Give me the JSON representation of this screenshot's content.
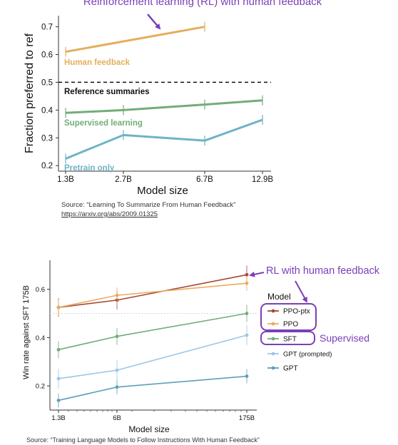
{
  "chart_data": [
    {
      "type": "line",
      "title": "Reinforcement learning (RL) with human feedback",
      "xlabel": "Model size",
      "ylabel": "Fraction preferred to ref",
      "x_ticks": [
        "1.3B",
        "2.7B",
        "6.7B",
        "12.9B"
      ],
      "y_ticks": [
        "0.2",
        "0.3",
        "0.4",
        "0.5",
        "0.6",
        "0.7"
      ],
      "ylim": [
        0.18,
        0.74
      ],
      "grid": false,
      "reference": {
        "label": "Reference summaries",
        "value": 0.5
      },
      "series": [
        {
          "name": "Human feedback",
          "color": "#e3b05c",
          "x": [
            "1.3B",
            "6.7B"
          ],
          "values": [
            0.61,
            0.7
          ]
        },
        {
          "name": "Supervised learning",
          "color": "#72ad78",
          "x": [
            "1.3B",
            "2.7B",
            "6.7B",
            "12.9B"
          ],
          "values": [
            0.39,
            0.4,
            0.42,
            0.435
          ]
        },
        {
          "name": "Pretrain only",
          "color": "#6db4c6",
          "x": [
            "1.3B",
            "2.7B",
            "6.7B",
            "12.9B"
          ],
          "values": [
            0.225,
            0.31,
            0.29,
            0.365
          ]
        }
      ],
      "source_text": "Source: “Learning To Summarize From Human Feedback”",
      "source_link": "https://arxiv.org/abs/2009.01325"
    },
    {
      "type": "line",
      "xlabel": "Model size",
      "ylabel": "Win rate against SFT 175B",
      "x_ticks": [
        "1.3B",
        "6B",
        "175B"
      ],
      "y_ticks": [
        "0.2",
        "0.4",
        "0.6"
      ],
      "ylim": [
        0.1,
        0.72
      ],
      "grid": false,
      "legend": {
        "title": "Model",
        "position": "right"
      },
      "series": [
        {
          "name": "PPO-ptx",
          "color": "#a8473a",
          "x": [
            "1.3B",
            "6B",
            "175B"
          ],
          "values": [
            0.525,
            0.555,
            0.66
          ]
        },
        {
          "name": "PPO",
          "color": "#e8ad5c",
          "x": [
            "1.3B",
            "6B",
            "175B"
          ],
          "values": [
            0.525,
            0.575,
            0.625
          ]
        },
        {
          "name": "SFT",
          "color": "#72ad78",
          "x": [
            "1.3B",
            "6B",
            "175B"
          ],
          "values": [
            0.35,
            0.405,
            0.5
          ]
        },
        {
          "name": "GPT (prompted)",
          "color": "#9cc6e6",
          "x": [
            "1.3B",
            "6B",
            "175B"
          ],
          "values": [
            0.23,
            0.265,
            0.41
          ]
        },
        {
          "name": "GPT",
          "color": "#5f9fb8",
          "x": [
            "1.3B",
            "6B",
            "175B"
          ],
          "values": [
            0.14,
            0.195,
            0.24
          ]
        }
      ],
      "annotations": [
        {
          "text": "RL with human feedback",
          "color": "#7a3fb8"
        },
        {
          "text": "Supervised",
          "color": "#7a3fb8"
        }
      ],
      "source_text": "Source: “Training Language Models to Follow Instructions With Human Feedback”"
    }
  ]
}
